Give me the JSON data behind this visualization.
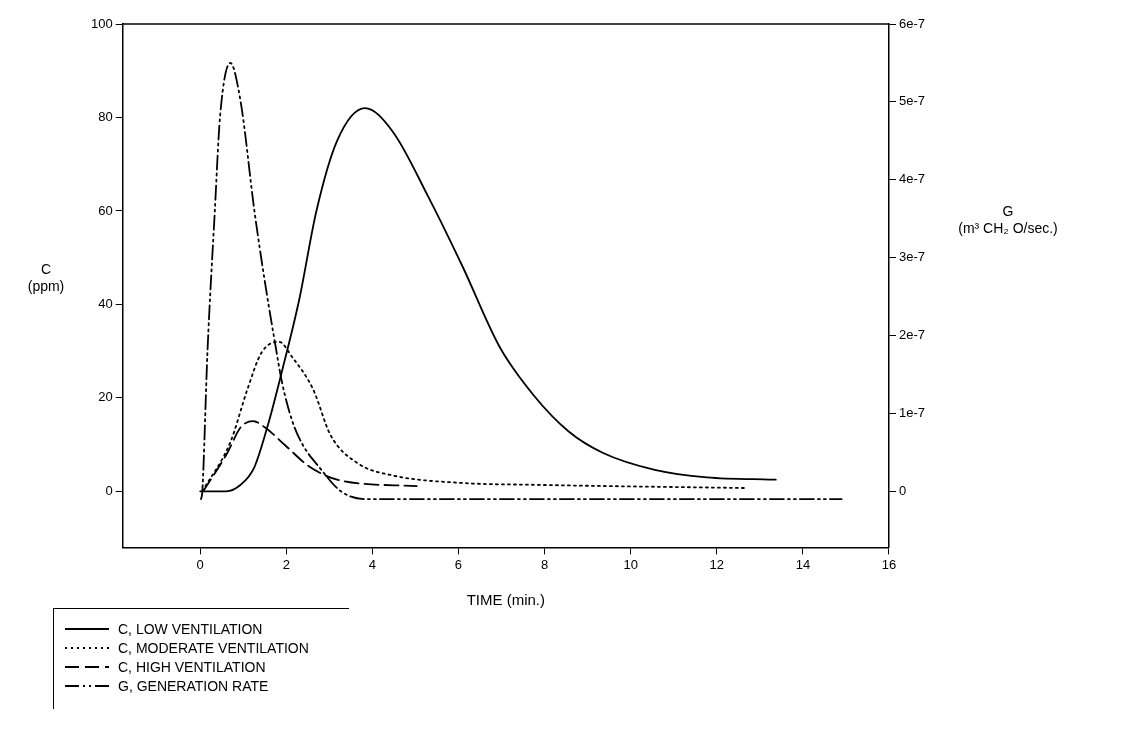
{
  "chart_data": {
    "type": "line",
    "xlabel": "TIME (min.)",
    "ylabel": "C (ppm)",
    "y2label": "G (m³ CH₂ O/sec.)",
    "xlim": [
      -1.8,
      16
    ],
    "xticks": [
      0,
      2,
      4,
      6,
      8,
      10,
      12,
      14,
      16
    ],
    "ylim": [
      -12,
      100
    ],
    "yticks": [
      0,
      20,
      40,
      60,
      80,
      100
    ],
    "y2lim": [
      -7.2e-08,
      6e-07
    ],
    "y2ticks": [
      0,
      {
        "value": 1e-07,
        "label": "1e-7"
      },
      {
        "value": 2e-07,
        "label": "2e-7"
      },
      {
        "value": 3e-07,
        "label": "3e-7"
      },
      {
        "value": 4e-07,
        "label": "4e-7"
      },
      {
        "value": 5e-07,
        "label": "5e-7"
      },
      {
        "value": 6e-07,
        "label": "6e-7"
      }
    ],
    "legend": "bottom left",
    "marker": "none",
    "series": [
      {
        "name": "C, LOW VENTILATION",
        "color": "#000000",
        "line_style": "solid",
        "x": [
          0,
          0.6,
          0.94,
          1.26,
          1.58,
          1.9,
          2.3,
          2.7,
          3.18,
          3.83,
          4.47,
          5.3,
          6.1,
          6.95,
          7.75,
          8.56,
          9.36,
          10.56,
          11.77,
          13.37
        ],
        "values": [
          0,
          0,
          1.4,
          5.2,
          14.4,
          25.7,
          41,
          60,
          75,
          82,
          77,
          63,
          48,
          31,
          20.5,
          12.8,
          8.2,
          4.6,
          3,
          2.5
        ]
      },
      {
        "name": "C, MODERATE VENTILATION",
        "color": "#000000",
        "line_style": "dotted",
        "x": [
          0.05,
          0.7,
          1.1,
          1.42,
          1.83,
          2.14,
          2.62,
          3.03,
          3.66,
          4.47,
          6.06,
          7.75,
          12.68
        ],
        "values": [
          0,
          10.5,
          21.9,
          29.6,
          32,
          28.7,
          21.9,
          12,
          6,
          3.4,
          1.8,
          1.4,
          0.7
        ]
      },
      {
        "name": "C, HIGH VENTILATION",
        "color": "#000000",
        "line_style": "dashed",
        "x": [
          0.07,
          0.63,
          0.94,
          1.23,
          1.5,
          1.98,
          2.55,
          3.27,
          5.03
        ],
        "values": [
          0,
          8.2,
          13.7,
          15,
          13.7,
          9.8,
          5.2,
          2.3,
          1.1
        ]
      },
      {
        "name": "G, GENERATION RATE",
        "color": "#000000",
        "line_style": "dashdot",
        "axis": "y2",
        "x": [
          0.02,
          0.05,
          0.17,
          0.34,
          0.46,
          0.7,
          0.94,
          1.26,
          1.5,
          1.74,
          1.9,
          2.14,
          2.38,
          2.78,
          3.27,
          3.83,
          4.86,
          14.9
        ],
        "values": [
          -1e-08,
          0,
          1.8e-07,
          3.6e-07,
          4.8e-07,
          5.5e-07,
          5e-07,
          3.6e-07,
          2.7e-07,
          1.9e-07,
          1.4e-07,
          9e-08,
          6e-08,
          3e-08,
          0,
          -1e-08,
          -1e-08,
          -1e-08
        ]
      }
    ]
  }
}
